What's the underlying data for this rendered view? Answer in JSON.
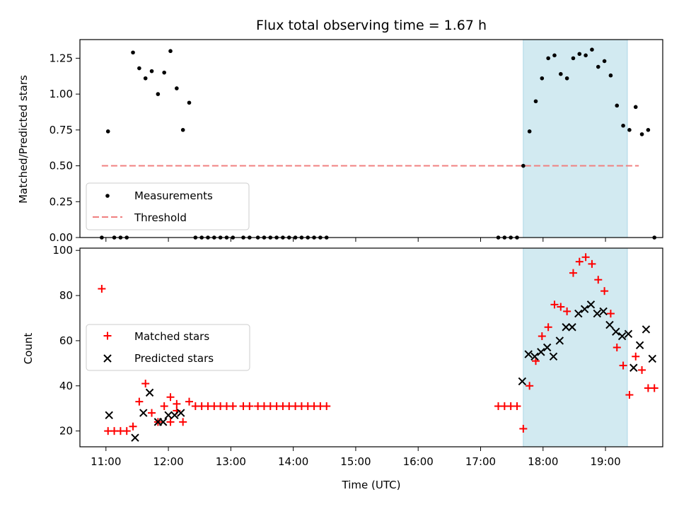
{
  "chart_data": [
    {
      "type": "scatter",
      "title": "Flux total observing time = 1.67 h",
      "xlabel": "",
      "ylabel": "Matched/Predicted stars",
      "xlim": [
        "10:35",
        "19:55"
      ],
      "ylim": [
        0,
        1.38
      ],
      "yticks": [
        "0.00",
        "0.25",
        "0.50",
        "0.75",
        "1.00",
        "1.25"
      ],
      "ytick_values": [
        0,
        0.25,
        0.5,
        0.75,
        1.0,
        1.25
      ],
      "grid": false,
      "legend_position": "lower-left",
      "shaded_interval": {
        "start": "17:41",
        "end": "19:21",
        "color": "#add8e6"
      },
      "series": [
        {
          "name": "Measurements",
          "marker": "dot",
          "color": "#000000",
          "x": [
            "10:56",
            "11:02",
            "11:08",
            "11:14",
            "11:20",
            "11:26",
            "11:32",
            "11:38",
            "11:44",
            "11:50",
            "11:56",
            "12:02",
            "12:08",
            "12:14",
            "12:20",
            "12:26",
            "12:32",
            "12:38",
            "12:44",
            "12:50",
            "12:56",
            "13:02",
            "13:12",
            "13:18",
            "13:26",
            "13:32",
            "13:38",
            "13:44",
            "13:50",
            "13:56",
            "14:02",
            "14:08",
            "14:14",
            "14:20",
            "14:26",
            "14:32",
            "17:17",
            "17:23",
            "17:29",
            "17:35",
            "17:41",
            "17:47",
            "17:53",
            "17:59",
            "18:05",
            "18:11",
            "18:17",
            "18:23",
            "18:29",
            "18:35",
            "18:41",
            "18:47",
            "18:53",
            "18:59",
            "19:05",
            "19:11",
            "19:17",
            "19:23",
            "19:29",
            "19:35"
          ],
          "y": [
            0,
            0.74,
            0,
            0,
            0,
            1.29,
            1.18,
            1.11,
            1.16,
            1.0,
            1.15,
            1.3,
            1.04,
            0.75,
            0.94,
            0,
            0,
            0,
            0,
            0,
            0,
            0,
            0,
            0,
            0,
            0,
            0,
            0,
            0,
            0,
            0,
            0,
            0,
            0,
            0,
            0,
            0,
            0,
            0,
            0,
            0.5,
            0.74,
            0.95,
            1.11,
            1.25,
            1.27,
            1.14,
            1.11,
            1.25,
            1.28,
            1.27,
            1.31,
            1.19,
            1.23,
            1.13,
            0.92,
            0.78,
            0.75,
            0.91,
            0.72
          ]
        },
        {
          "name": "Threshold",
          "style": "dashed",
          "color": "#f08080",
          "x": [
            "10:56",
            "19:32"
          ],
          "y": [
            0.5,
            0.5
          ]
        }
      ]
    },
    {
      "type": "scatter",
      "title": "",
      "xlabel": "Time (UTC)",
      "ylabel": "Count",
      "xlim": [
        "10:35",
        "19:55"
      ],
      "ylim": [
        13,
        101
      ],
      "xticks": [
        "11:00",
        "12:00",
        "13:00",
        "14:00",
        "15:00",
        "16:00",
        "17:00",
        "18:00",
        "19:00"
      ],
      "yticks": [
        "20",
        "40",
        "60",
        "80",
        "100"
      ],
      "ytick_values": [
        20,
        40,
        60,
        80,
        100
      ],
      "grid": false,
      "legend_position": "center-left",
      "shaded_interval": {
        "start": "17:41",
        "end": "19:21",
        "color": "#add8e6"
      },
      "series": [
        {
          "name": "Matched stars",
          "marker": "plus",
          "color": "#ff0000",
          "x": [
            "10:56",
            "11:02",
            "11:08",
            "11:14",
            "11:20",
            "11:26",
            "11:32",
            "11:38",
            "11:44",
            "11:50",
            "11:56",
            "12:02",
            "12:08",
            "12:14",
            "12:20",
            "12:26",
            "12:32",
            "12:38",
            "12:44",
            "12:50",
            "12:56",
            "13:02",
            "13:12",
            "13:18",
            "13:26",
            "13:32",
            "13:38",
            "13:44",
            "13:50",
            "13:56",
            "14:02",
            "14:08",
            "14:14",
            "14:20",
            "14:26",
            "14:32",
            "17:17",
            "17:23",
            "17:29",
            "17:35",
            "17:41",
            "17:47",
            "17:53",
            "17:59",
            "18:05",
            "18:11",
            "18:17",
            "18:23",
            "18:29",
            "18:35",
            "18:41",
            "18:47",
            "18:53",
            "18:59",
            "19:05",
            "19:11",
            "19:17",
            "19:23",
            "19:29",
            "19:35"
          ],
          "y": [
            83,
            20,
            20,
            20,
            20,
            22,
            33,
            41,
            28,
            24,
            31,
            35,
            29,
            24,
            33,
            31,
            31,
            31,
            31,
            31,
            31,
            31,
            31,
            31,
            31,
            31,
            31,
            31,
            31,
            31,
            31,
            31,
            31,
            31,
            31,
            31,
            31,
            31,
            31,
            31,
            21,
            40,
            51,
            62,
            66,
            76,
            75,
            73,
            90,
            95,
            97,
            94,
            87,
            82,
            72,
            57,
            49,
            36,
            53,
            47
          ]
        },
        {
          "name": "Predicted stars",
          "marker": "x",
          "color": "#000000",
          "x": [
            "11:03",
            "11:28",
            "11:36",
            "11:42",
            "11:50",
            "11:55",
            "12:00",
            "12:06",
            "12:12",
            "17:40",
            "17:46",
            "17:52",
            "17:58",
            "18:04",
            "18:10",
            "18:16",
            "18:22",
            "18:28",
            "18:34",
            "18:40",
            "18:46",
            "18:52",
            "18:58",
            "19:04",
            "19:10",
            "19:16",
            "19:22"
          ],
          "y": [
            27,
            17,
            28,
            37,
            24,
            24,
            27,
            27,
            28,
            42,
            54,
            53,
            55,
            57,
            53,
            60,
            66,
            66,
            72,
            74,
            76,
            72,
            73,
            67,
            64,
            62,
            63
          ]
        }
      ]
    }
  ],
  "extra_points": {
    "bottom_red_tail_x": [
      "19:41",
      "19:47"
    ],
    "bottom_red_tail_y": [
      39,
      39
    ],
    "bottom_black_tail_x": [
      "19:27",
      "19:33",
      "19:39"
    ],
    "bottom_black_tail_y": [
      48,
      58,
      65
    ],
    "bottom_black_last_x": "19:45",
    "bottom_black_last_y": 52,
    "bottom_red_mid_x": [
      "12:02",
      "12:08"
    ],
    "bottom_red_mid_y": [
      24,
      32
    ],
    "top_last_x": "19:41",
    "top_last_y": 0.75,
    "top_end_x": "19:47",
    "top_end_y": 0
  }
}
